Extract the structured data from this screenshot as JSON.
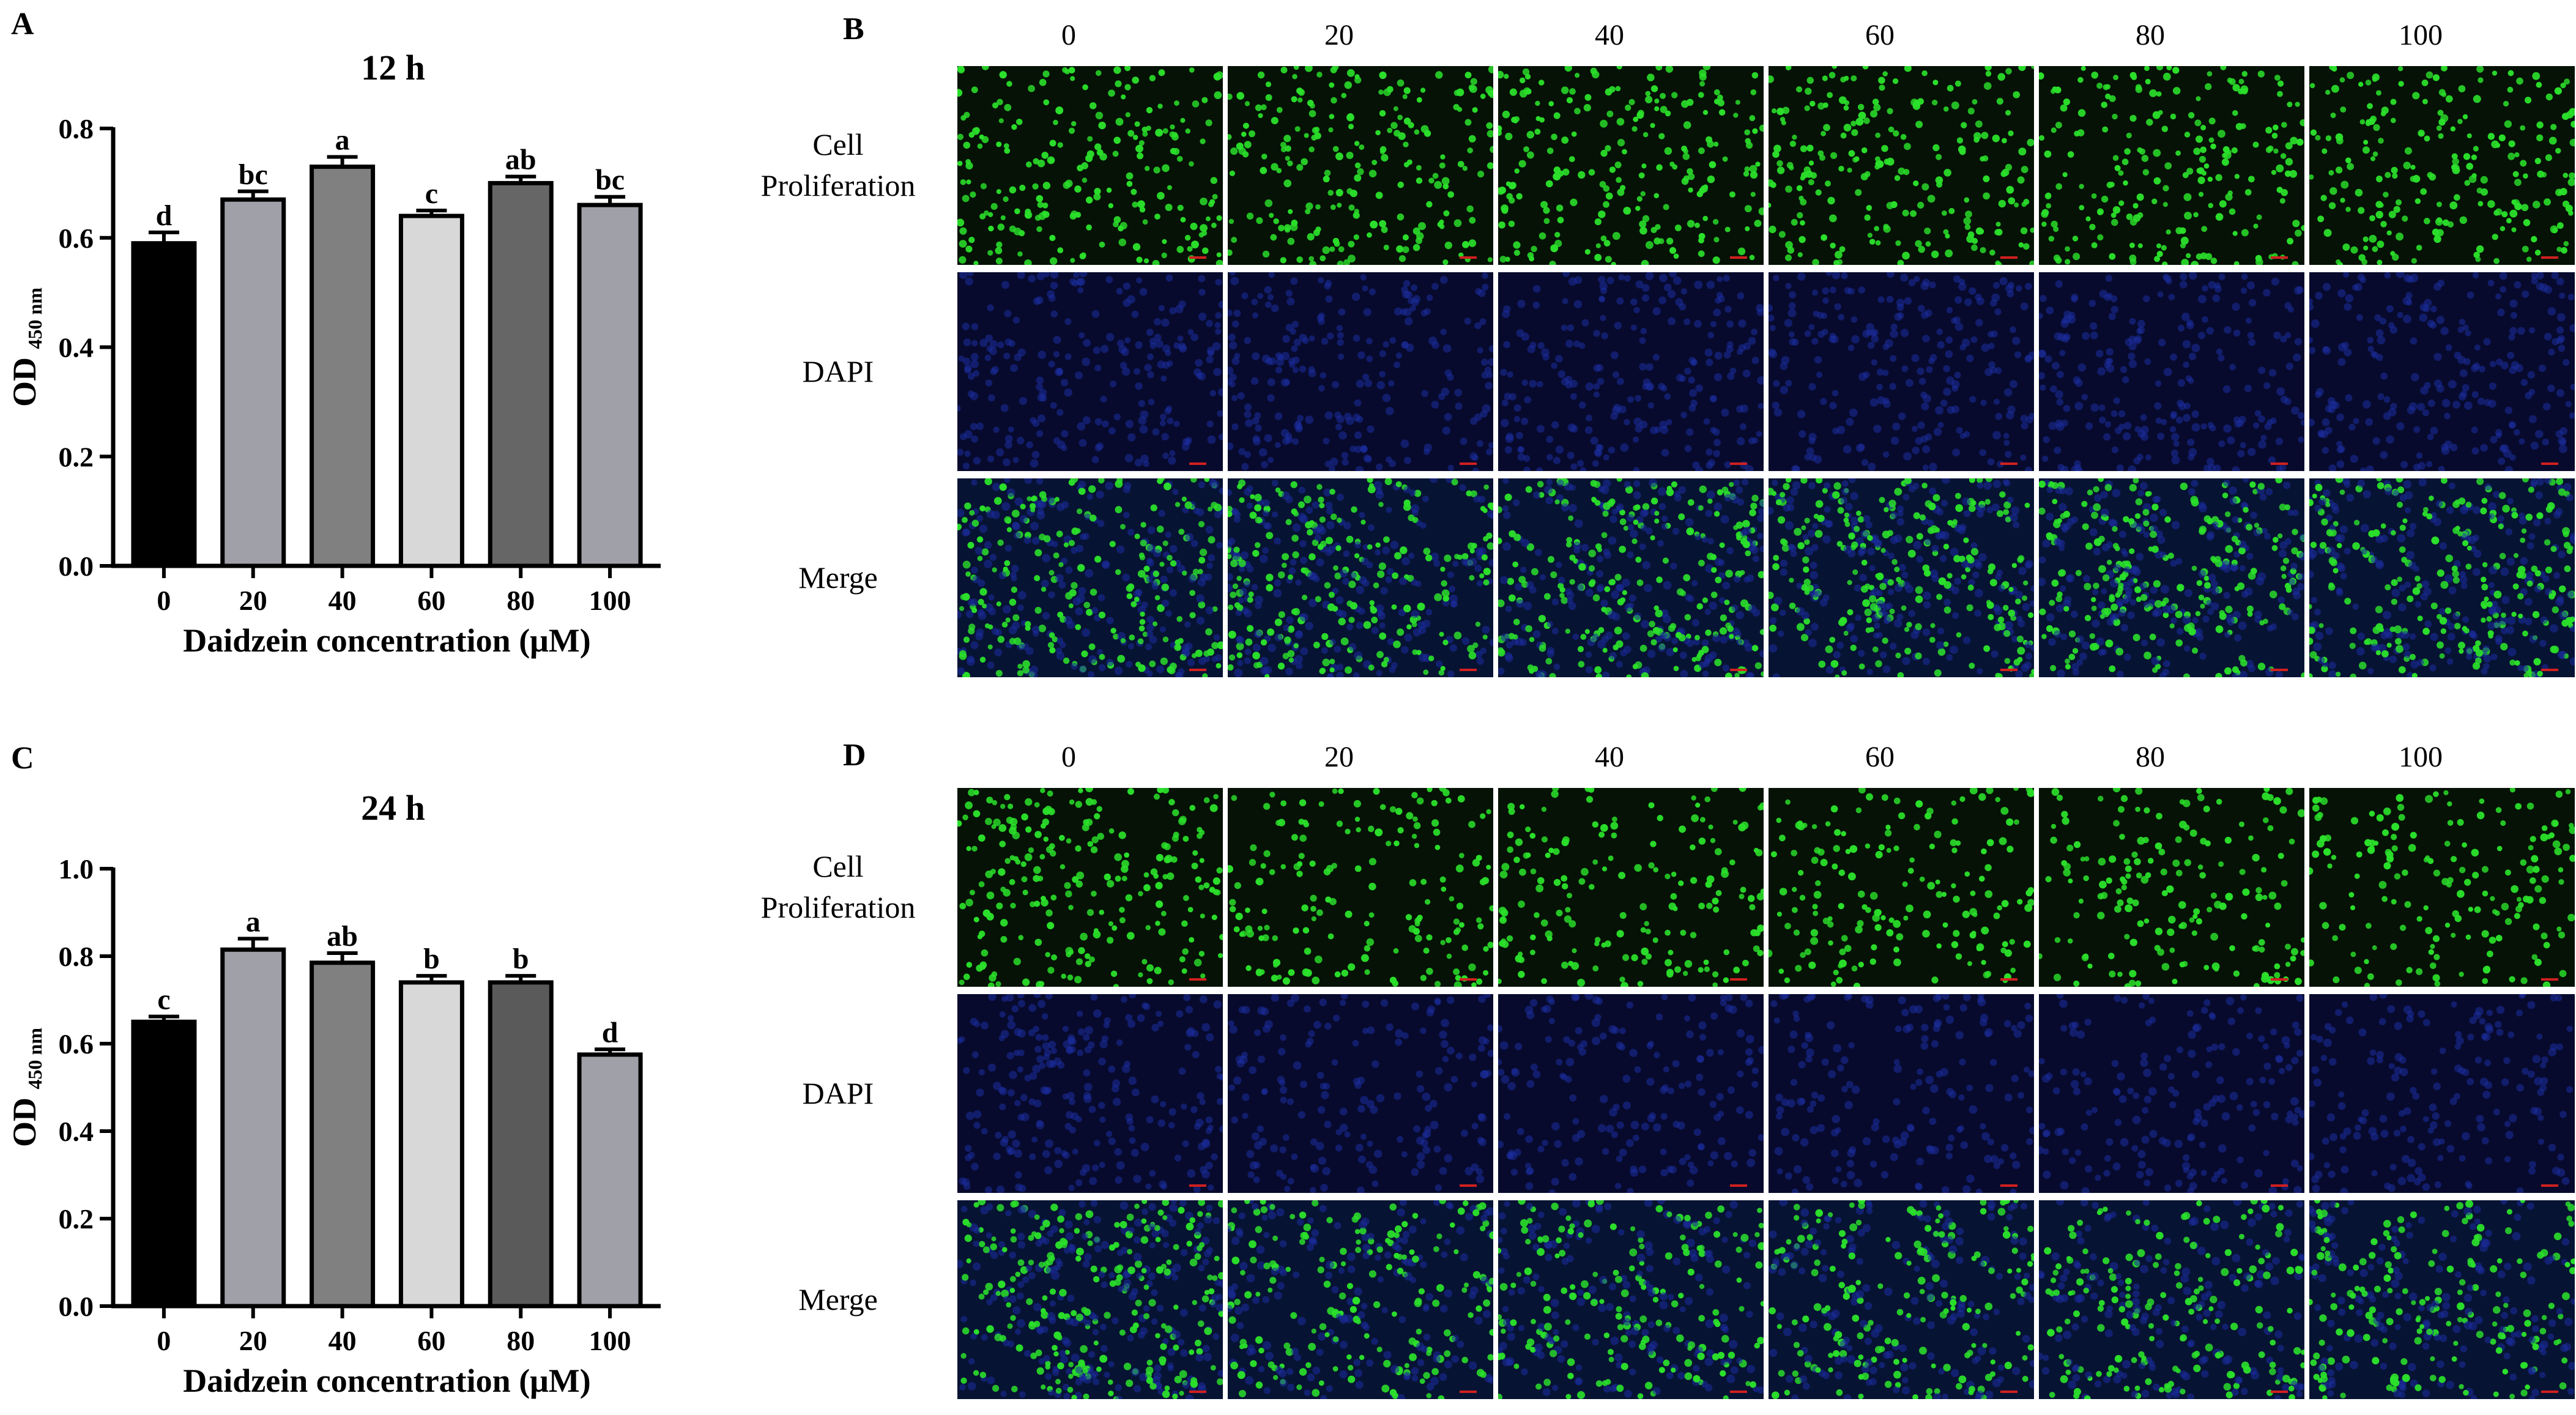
{
  "panels": {
    "a": "A",
    "b": "B",
    "c": "C",
    "d": "D"
  },
  "chart_data": [
    {
      "type": "bar",
      "title": "12 h",
      "xlabel": "Daidzein concentration (μM)",
      "ylabel": "OD",
      "ylabel_sub": "450 nm",
      "categories": [
        "0",
        "20",
        "40",
        "60",
        "80",
        "100"
      ],
      "values": [
        0.59,
        0.67,
        0.73,
        0.64,
        0.7,
        0.66
      ],
      "errors": [
        0.02,
        0.015,
        0.018,
        0.01,
        0.012,
        0.015
      ],
      "letters": [
        "d",
        "bc",
        "a",
        "c",
        "ab",
        "bc"
      ],
      "bar_colors": [
        "#000000",
        "#a0a0a8",
        "#808080",
        "#d8d8d8",
        "#666666",
        "#a0a0a8"
      ],
      "ylim": [
        0,
        0.8
      ],
      "yticks": [
        "0.0",
        "0.2",
        "0.4",
        "0.6",
        "0.8"
      ]
    },
    {
      "type": "bar",
      "title": "24 h",
      "xlabel": "Daidzein concentration (μM)",
      "ylabel": "OD",
      "ylabel_sub": "450 nm",
      "categories": [
        "0",
        "20",
        "40",
        "60",
        "80",
        "100"
      ],
      "values": [
        0.65,
        0.815,
        0.785,
        0.74,
        0.74,
        0.575
      ],
      "errors": [
        0.012,
        0.025,
        0.022,
        0.015,
        0.015,
        0.012
      ],
      "letters": [
        "c",
        "a",
        "ab",
        "b",
        "b",
        "d"
      ],
      "bar_colors": [
        "#000000",
        "#a0a0a8",
        "#808080",
        "#d8d8d8",
        "#5a5a5a",
        "#a0a0a8"
      ],
      "ylim": [
        0,
        1.0
      ],
      "yticks": [
        "0.0",
        "0.2",
        "0.4",
        "0.6",
        "0.8",
        "1.0"
      ]
    }
  ],
  "micrographs": {
    "columns": [
      "0",
      "20",
      "40",
      "60",
      "80",
      "100"
    ],
    "rows": [
      "Cell Proliferation",
      "DAPI",
      "Merge"
    ],
    "colors": {
      "proliferation_bg": "#051205",
      "proliferation_dot": "#2be02b",
      "dapi_bg": "#070a2c",
      "dapi_dot": "#1c2ea0",
      "merge_bg": "#071333",
      "scale_bar": "#d02020"
    }
  }
}
